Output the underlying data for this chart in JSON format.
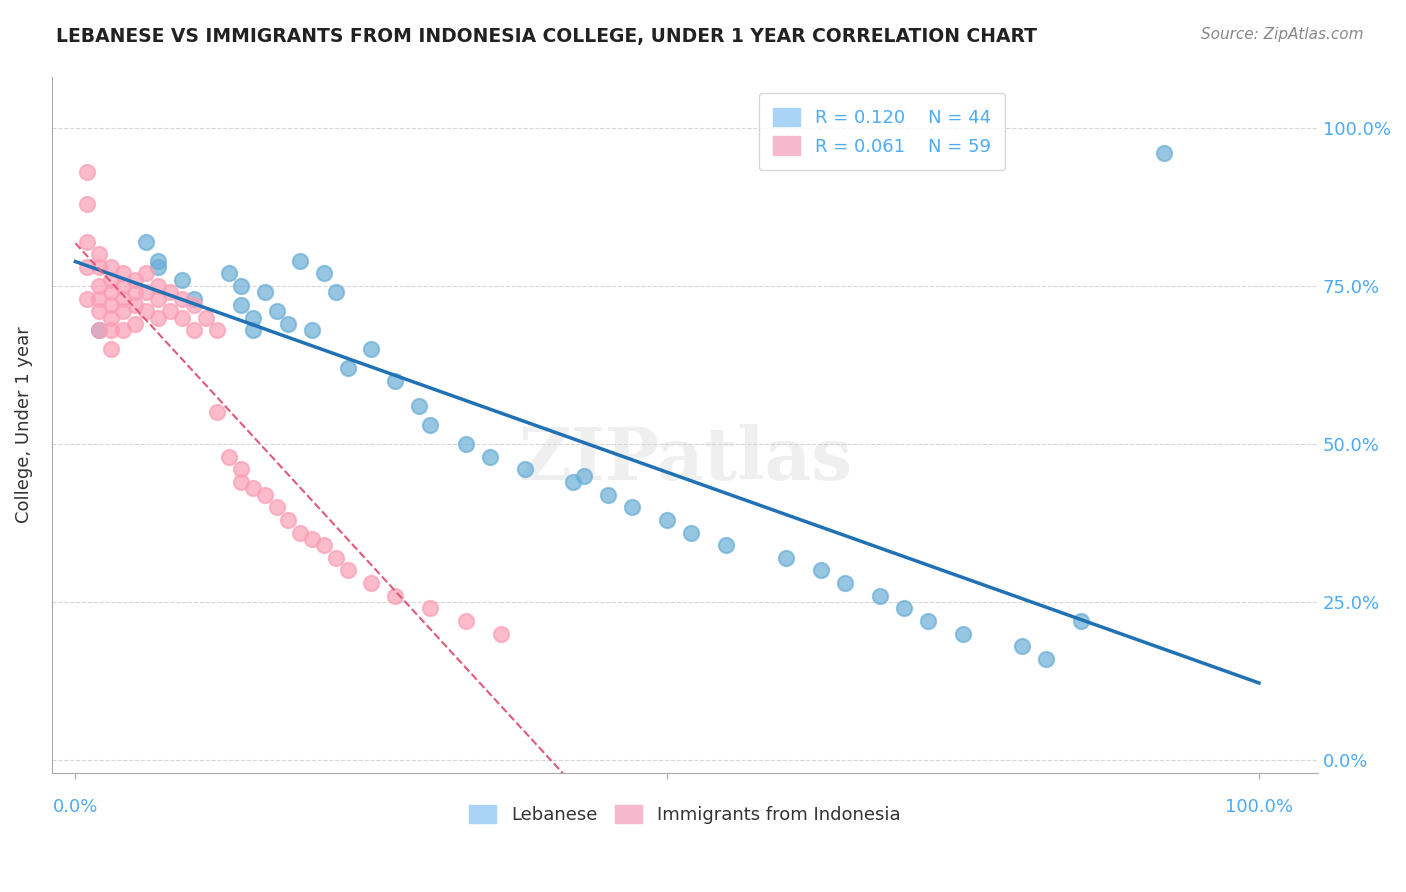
{
  "title": "LEBANESE VS IMMIGRANTS FROM INDONESIA COLLEGE, UNDER 1 YEAR CORRELATION CHART",
  "source": "Source: ZipAtlas.com",
  "ylabel": "College, Under 1 year",
  "ylabel_ticks": [
    "0.0%",
    "25.0%",
    "50.0%",
    "75.0%",
    "100.0%"
  ],
  "ytick_vals": [
    0.0,
    0.25,
    0.5,
    0.75,
    1.0
  ],
  "legend_blue_r": "R = 0.120",
  "legend_blue_n": "N = 44",
  "legend_pink_r": "R = 0.061",
  "legend_pink_n": "N = 59",
  "blue_color": "#6baed6",
  "pink_color": "#fa9fb5",
  "blue_line_color": "#2171b5",
  "pink_line_color": "#e05a7a",
  "grid_color": "#cccccc",
  "axis_label_color": "#4dabf7",
  "watermark": "ZIPatlas",
  "blue_x": [
    0.02,
    0.06,
    0.07,
    0.07,
    0.09,
    0.1,
    0.13,
    0.14,
    0.14,
    0.15,
    0.15,
    0.16,
    0.17,
    0.18,
    0.19,
    0.2,
    0.21,
    0.22,
    0.23,
    0.25,
    0.27,
    0.29,
    0.3,
    0.33,
    0.35,
    0.38,
    0.42,
    0.43,
    0.45,
    0.47,
    0.5,
    0.52,
    0.55,
    0.6,
    0.63,
    0.65,
    0.68,
    0.7,
    0.72,
    0.75,
    0.8,
    0.82,
    0.85,
    0.92
  ],
  "blue_y": [
    0.68,
    0.82,
    0.79,
    0.78,
    0.76,
    0.73,
    0.77,
    0.75,
    0.72,
    0.7,
    0.68,
    0.74,
    0.71,
    0.69,
    0.79,
    0.68,
    0.77,
    0.74,
    0.62,
    0.65,
    0.6,
    0.56,
    0.53,
    0.5,
    0.48,
    0.46,
    0.44,
    0.45,
    0.42,
    0.4,
    0.38,
    0.36,
    0.34,
    0.32,
    0.3,
    0.28,
    0.26,
    0.24,
    0.22,
    0.2,
    0.18,
    0.16,
    0.22,
    0.96
  ],
  "pink_x": [
    0.01,
    0.01,
    0.01,
    0.01,
    0.01,
    0.02,
    0.02,
    0.02,
    0.02,
    0.02,
    0.02,
    0.03,
    0.03,
    0.03,
    0.03,
    0.03,
    0.03,
    0.03,
    0.04,
    0.04,
    0.04,
    0.04,
    0.04,
    0.05,
    0.05,
    0.05,
    0.05,
    0.06,
    0.06,
    0.06,
    0.07,
    0.07,
    0.07,
    0.08,
    0.08,
    0.09,
    0.09,
    0.1,
    0.1,
    0.11,
    0.12,
    0.12,
    0.13,
    0.14,
    0.14,
    0.15,
    0.16,
    0.17,
    0.18,
    0.19,
    0.2,
    0.21,
    0.22,
    0.23,
    0.25,
    0.27,
    0.3,
    0.33,
    0.36
  ],
  "pink_y": [
    0.93,
    0.88,
    0.82,
    0.78,
    0.73,
    0.8,
    0.78,
    0.75,
    0.73,
    0.71,
    0.68,
    0.78,
    0.76,
    0.74,
    0.72,
    0.7,
    0.68,
    0.65,
    0.77,
    0.75,
    0.73,
    0.71,
    0.68,
    0.76,
    0.74,
    0.72,
    0.69,
    0.77,
    0.74,
    0.71,
    0.75,
    0.73,
    0.7,
    0.74,
    0.71,
    0.73,
    0.7,
    0.72,
    0.68,
    0.7,
    0.68,
    0.55,
    0.48,
    0.46,
    0.44,
    0.43,
    0.42,
    0.4,
    0.38,
    0.36,
    0.35,
    0.34,
    0.32,
    0.3,
    0.28,
    0.26,
    0.24,
    0.22,
    0.2
  ],
  "bottom_legend_labels": [
    "Lebanese",
    "Immigrants from Indonesia"
  ]
}
